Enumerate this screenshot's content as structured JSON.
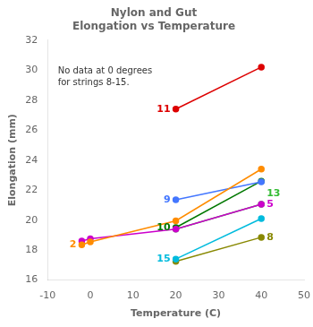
{
  "chart_data": {
    "type": "line",
    "title": "Nylon and Gut\nElongation vs Temperature",
    "xlabel": "Temperature (C)",
    "ylabel": "Elongation (mm)",
    "annotation": "No data at 0 degrees\nfor strings 8-15.",
    "xlim": [
      -10,
      50
    ],
    "ylim": [
      16,
      32
    ],
    "xticks": [
      -10,
      0,
      10,
      20,
      30,
      40,
      50
    ],
    "yticks": [
      16,
      18,
      20,
      22,
      24,
      26,
      28,
      30,
      32
    ],
    "grid": false,
    "marker": "circle",
    "series": [
      {
        "name": "2",
        "color": "#FF8C00",
        "x": [
          -2,
          0,
          20,
          40
        ],
        "values": [
          18.35,
          18.55,
          19.95,
          23.4
        ]
      },
      {
        "name": "5",
        "color": "#CC00CC",
        "x": [
          -2,
          0,
          20,
          40
        ],
        "values": [
          18.6,
          18.75,
          19.4,
          21.05
        ]
      },
      {
        "name": "9",
        "color": "#4477FF",
        "x": [
          20,
          40
        ],
        "values": [
          21.35,
          22.55
        ]
      },
      {
        "name": "10",
        "color": "#007700",
        "x": [
          20,
          40
        ],
        "values": [
          19.5,
          22.6
        ]
      },
      {
        "name": "11",
        "color": "#DD0000",
        "x": [
          20,
          40
        ],
        "values": [
          27.4,
          30.2
        ]
      },
      {
        "name": "13",
        "color": "#33BB33",
        "x": [
          20,
          40
        ],
        "values": [
          19.4,
          21.05
        ]
      },
      {
        "name": "15",
        "color": "#00BBDD",
        "x": [
          20,
          40
        ],
        "values": [
          17.4,
          20.1
        ]
      },
      {
        "name": "8",
        "color": "#888800",
        "x": [
          20,
          40
        ],
        "values": [
          17.25,
          18.85
        ]
      }
    ]
  }
}
